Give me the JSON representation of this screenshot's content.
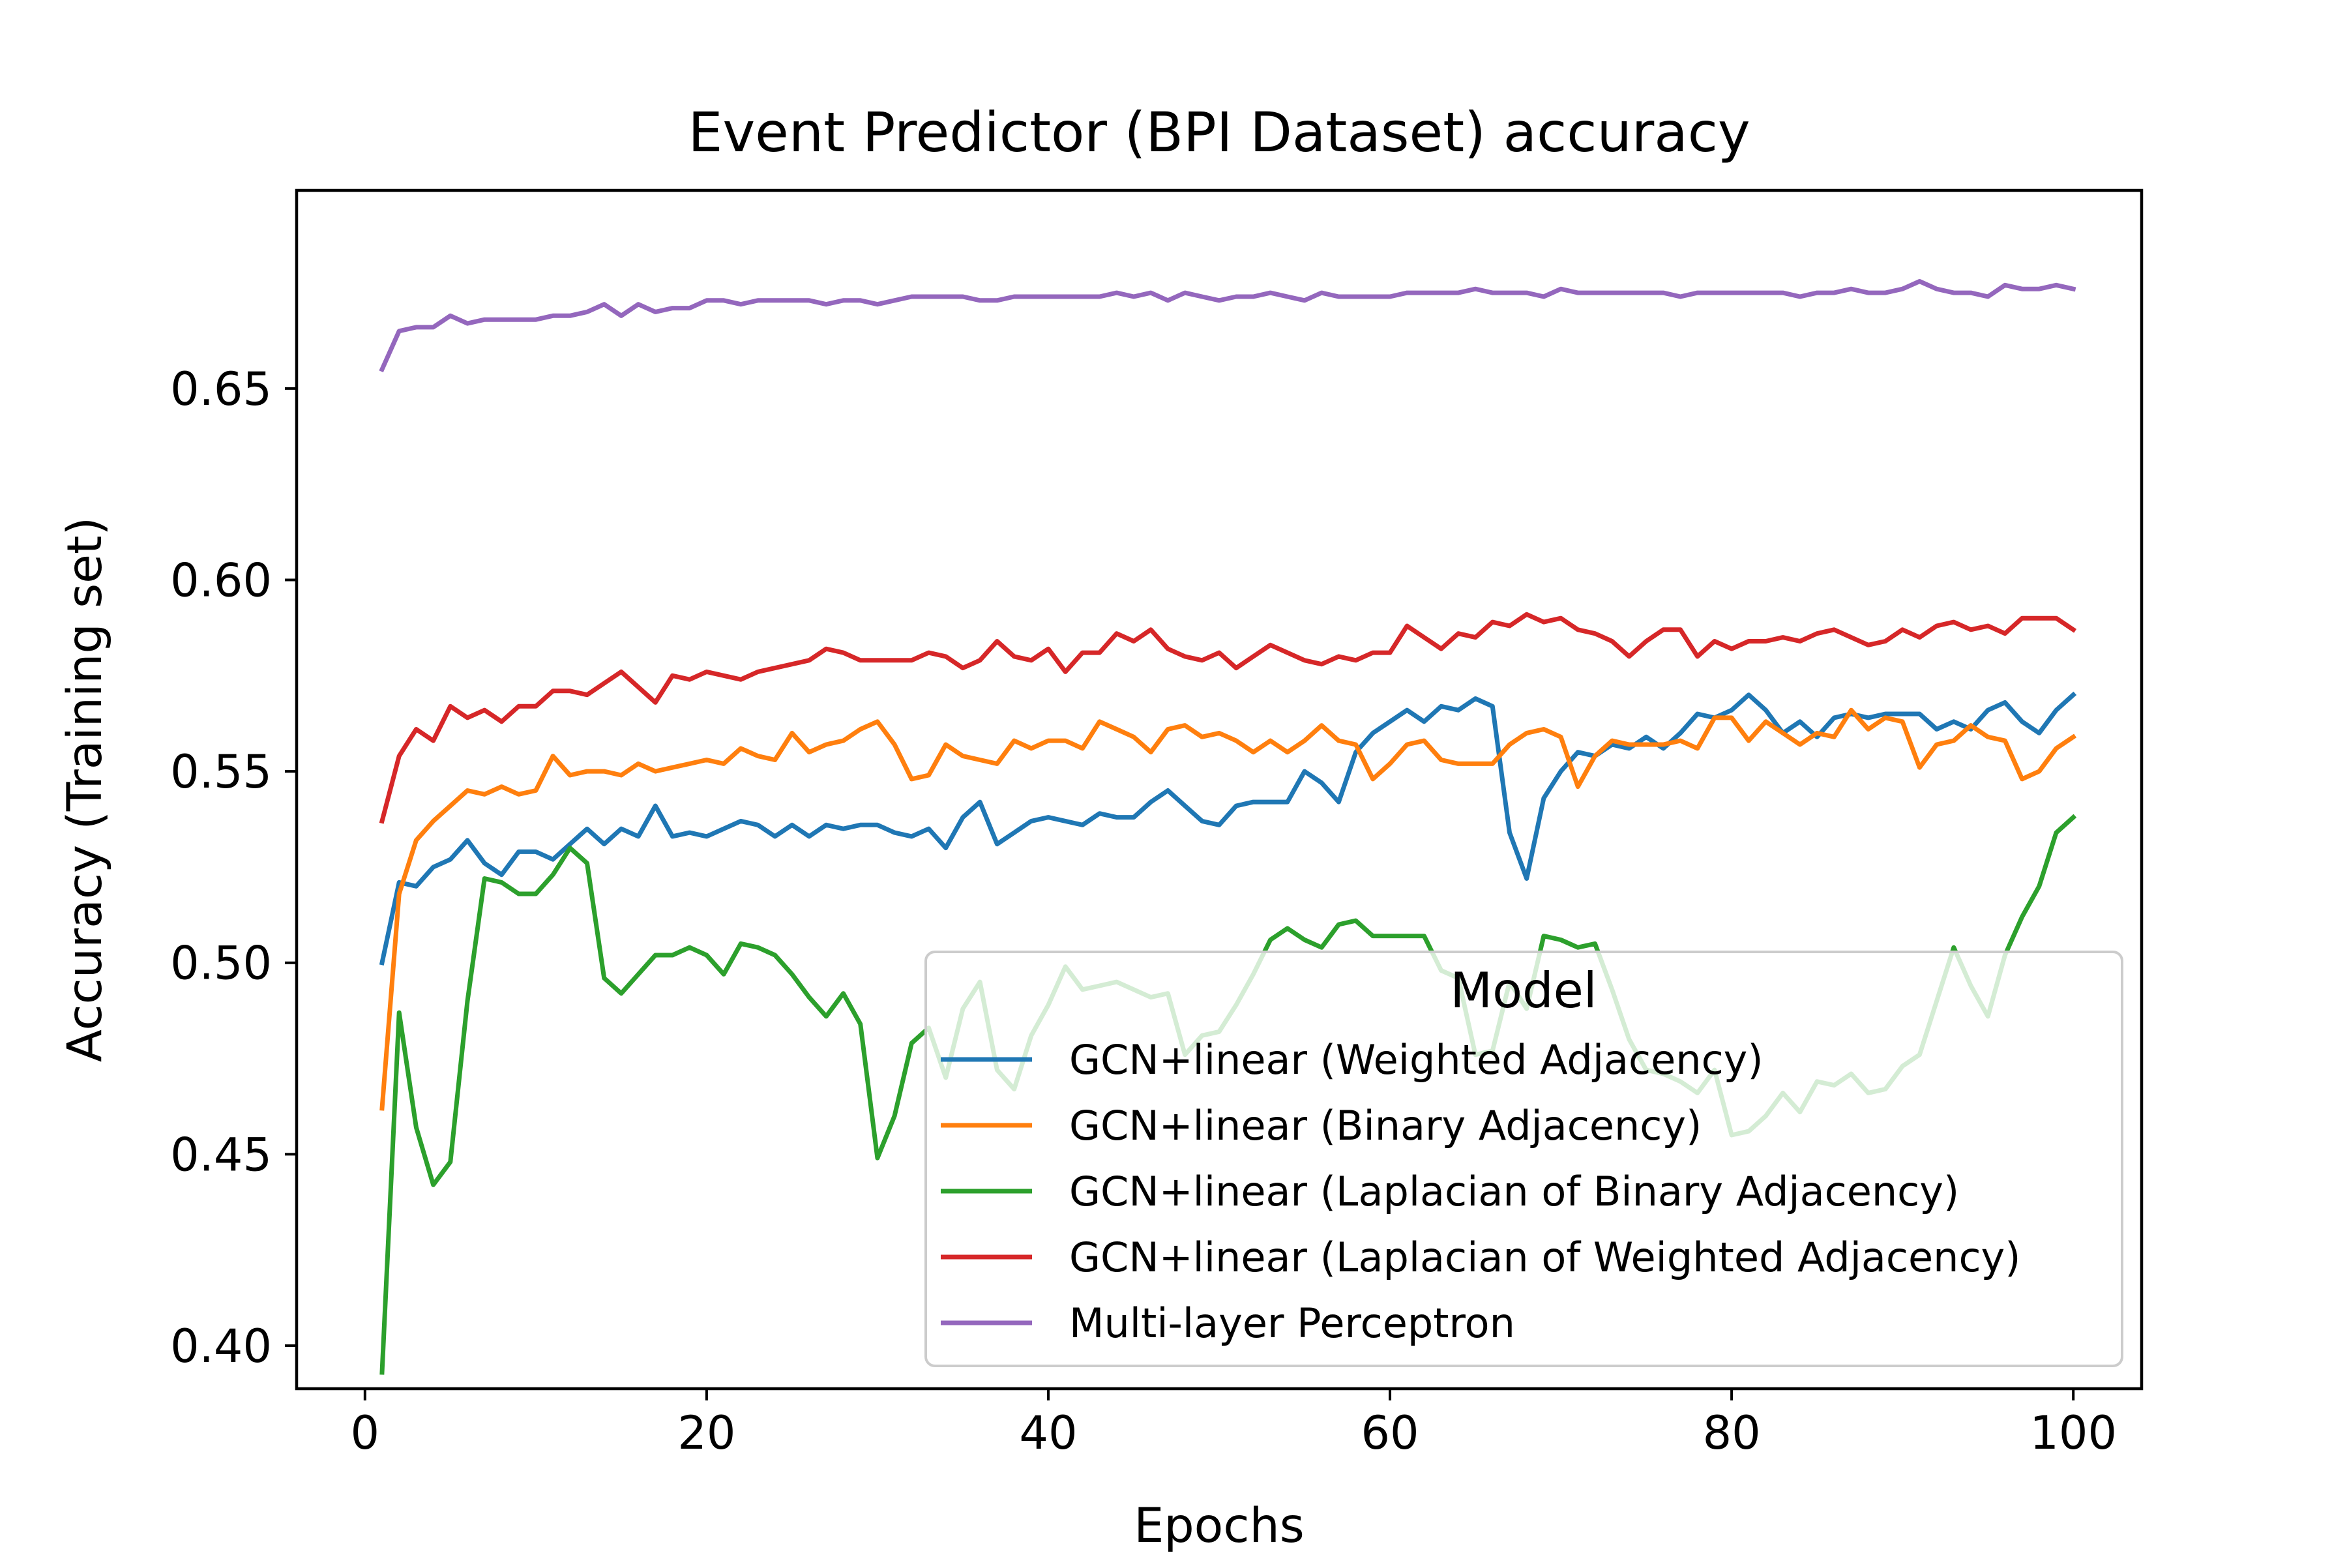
{
  "chart_data": {
    "type": "line",
    "title": "Event Predictor (BPI Dataset) accuracy",
    "xlabel": "Epochs",
    "ylabel": "Accuracy (Training set)",
    "xlim": [
      -4,
      104
    ],
    "ylim": [
      0.38875,
      0.70175
    ],
    "xticks": [
      0,
      20,
      40,
      60,
      80,
      100
    ],
    "yticks": [
      0.4,
      0.45,
      0.5,
      0.55,
      0.6,
      0.65
    ],
    "xtick_labels": [
      "0",
      "20",
      "40",
      "60",
      "80",
      "100"
    ],
    "ytick_labels": [
      "0.40",
      "0.45",
      "0.50",
      "0.55",
      "0.60",
      "0.65"
    ],
    "grid": false,
    "legend": {
      "title": "Model",
      "placement": "lower right"
    },
    "x_start": 1,
    "series": [
      {
        "name": "GCN+linear (Weighted Adjacency)",
        "color": "#1f77b4",
        "values": [
          0.5,
          0.521,
          0.52,
          0.525,
          0.527,
          0.532,
          0.526,
          0.523,
          0.529,
          0.529,
          0.527,
          0.531,
          0.535,
          0.531,
          0.535,
          0.533,
          0.541,
          0.533,
          0.534,
          0.533,
          0.535,
          0.537,
          0.536,
          0.533,
          0.536,
          0.533,
          0.536,
          0.535,
          0.536,
          0.536,
          0.534,
          0.533,
          0.535,
          0.53,
          0.538,
          0.542,
          0.531,
          0.534,
          0.537,
          0.538,
          0.537,
          0.536,
          0.539,
          0.538,
          0.538,
          0.542,
          0.545,
          0.541,
          0.537,
          0.536,
          0.541,
          0.542,
          0.542,
          0.542,
          0.55,
          0.547,
          0.542,
          0.555,
          0.56,
          0.563,
          0.566,
          0.563,
          0.567,
          0.566,
          0.569,
          0.567,
          0.534,
          0.522,
          0.543,
          0.55,
          0.555,
          0.554,
          0.557,
          0.556,
          0.559,
          0.556,
          0.56,
          0.565,
          0.564,
          0.566,
          0.57,
          0.566,
          0.56,
          0.563,
          0.559,
          0.564,
          0.565,
          0.564,
          0.565,
          0.565,
          0.565,
          0.561,
          0.563,
          0.561,
          0.566,
          0.568,
          0.563,
          0.56,
          0.566,
          0.57
        ]
      },
      {
        "name": "GCN+linear (Binary Adjacency)",
        "color": "#ff7f0e",
        "values": [
          0.462,
          0.518,
          0.532,
          0.537,
          0.541,
          0.545,
          0.544,
          0.546,
          0.544,
          0.545,
          0.554,
          0.549,
          0.55,
          0.55,
          0.549,
          0.552,
          0.55,
          0.551,
          0.552,
          0.553,
          0.552,
          0.556,
          0.554,
          0.553,
          0.56,
          0.555,
          0.557,
          0.558,
          0.561,
          0.563,
          0.557,
          0.548,
          0.549,
          0.557,
          0.554,
          0.553,
          0.552,
          0.558,
          0.556,
          0.558,
          0.558,
          0.556,
          0.563,
          0.561,
          0.559,
          0.555,
          0.561,
          0.562,
          0.559,
          0.56,
          0.558,
          0.555,
          0.558,
          0.555,
          0.558,
          0.562,
          0.558,
          0.557,
          0.548,
          0.552,
          0.557,
          0.558,
          0.553,
          0.552,
          0.552,
          0.552,
          0.557,
          0.56,
          0.561,
          0.559,
          0.546,
          0.554,
          0.558,
          0.557,
          0.557,
          0.557,
          0.558,
          0.556,
          0.564,
          0.564,
          0.558,
          0.563,
          0.56,
          0.557,
          0.56,
          0.559,
          0.566,
          0.561,
          0.564,
          0.563,
          0.551,
          0.557,
          0.558,
          0.562,
          0.559,
          0.558,
          0.548,
          0.55,
          0.556,
          0.559
        ]
      },
      {
        "name": "GCN+linear (Laplacian of Binary Adjacency)",
        "color": "#2ca02c",
        "values": [
          0.393,
          0.487,
          0.457,
          0.442,
          0.448,
          0.49,
          0.522,
          0.521,
          0.518,
          0.518,
          0.523,
          0.53,
          0.526,
          0.496,
          0.492,
          0.497,
          0.502,
          0.502,
          0.504,
          0.502,
          0.497,
          0.505,
          0.504,
          0.502,
          0.497,
          0.491,
          0.486,
          0.492,
          0.484,
          0.449,
          0.46,
          0.479,
          0.483,
          0.47,
          0.488,
          0.495,
          0.472,
          0.467,
          0.481,
          0.489,
          0.499,
          0.493,
          0.494,
          0.495,
          0.493,
          0.491,
          0.492,
          0.476,
          0.481,
          0.482,
          0.489,
          0.497,
          0.506,
          0.509,
          0.506,
          0.504,
          0.51,
          0.511,
          0.507,
          0.507,
          0.507,
          0.507,
          0.498,
          0.496,
          0.476,
          0.477,
          0.495,
          0.488,
          0.507,
          0.506,
          0.504,
          0.505,
          0.493,
          0.48,
          0.472,
          0.471,
          0.469,
          0.466,
          0.472,
          0.455,
          0.456,
          0.46,
          0.466,
          0.461,
          0.469,
          0.468,
          0.471,
          0.466,
          0.467,
          0.473,
          0.476,
          0.49,
          0.504,
          0.494,
          0.486,
          0.502,
          0.512,
          0.52,
          0.534,
          0.538
        ]
      },
      {
        "name": "GCN+linear (Laplacian of Weighted Adjacency)",
        "color": "#d62728",
        "values": [
          0.537,
          0.554,
          0.561,
          0.558,
          0.567,
          0.564,
          0.566,
          0.563,
          0.567,
          0.567,
          0.571,
          0.571,
          0.57,
          0.573,
          0.576,
          0.572,
          0.568,
          0.575,
          0.574,
          0.576,
          0.575,
          0.574,
          0.576,
          0.577,
          0.578,
          0.579,
          0.582,
          0.581,
          0.579,
          0.579,
          0.579,
          0.579,
          0.581,
          0.58,
          0.577,
          0.579,
          0.584,
          0.58,
          0.579,
          0.582,
          0.576,
          0.581,
          0.581,
          0.586,
          0.584,
          0.587,
          0.582,
          0.58,
          0.579,
          0.581,
          0.577,
          0.58,
          0.583,
          0.581,
          0.579,
          0.578,
          0.58,
          0.579,
          0.581,
          0.581,
          0.588,
          0.585,
          0.582,
          0.586,
          0.585,
          0.589,
          0.588,
          0.591,
          0.589,
          0.59,
          0.587,
          0.586,
          0.584,
          0.58,
          0.584,
          0.587,
          0.587,
          0.58,
          0.584,
          0.582,
          0.584,
          0.584,
          0.585,
          0.584,
          0.586,
          0.587,
          0.585,
          0.583,
          0.584,
          0.587,
          0.585,
          0.588,
          0.589,
          0.587,
          0.588,
          0.586,
          0.59,
          0.59,
          0.59,
          0.587
        ]
      },
      {
        "name": "Multi-layer Perceptron",
        "color": "#9467bd",
        "values": [
          0.655,
          0.665,
          0.666,
          0.666,
          0.669,
          0.667,
          0.668,
          0.668,
          0.668,
          0.668,
          0.669,
          0.669,
          0.67,
          0.672,
          0.669,
          0.672,
          0.67,
          0.671,
          0.671,
          0.673,
          0.673,
          0.672,
          0.673,
          0.673,
          0.673,
          0.673,
          0.672,
          0.673,
          0.673,
          0.672,
          0.673,
          0.674,
          0.674,
          0.674,
          0.674,
          0.673,
          0.673,
          0.674,
          0.674,
          0.674,
          0.674,
          0.674,
          0.674,
          0.675,
          0.674,
          0.675,
          0.673,
          0.675,
          0.674,
          0.673,
          0.674,
          0.674,
          0.675,
          0.674,
          0.673,
          0.675,
          0.674,
          0.674,
          0.674,
          0.674,
          0.675,
          0.675,
          0.675,
          0.675,
          0.676,
          0.675,
          0.675,
          0.675,
          0.674,
          0.676,
          0.675,
          0.675,
          0.675,
          0.675,
          0.675,
          0.675,
          0.674,
          0.675,
          0.675,
          0.675,
          0.675,
          0.675,
          0.675,
          0.674,
          0.675,
          0.675,
          0.676,
          0.675,
          0.675,
          0.676,
          0.678,
          0.676,
          0.675,
          0.675,
          0.674,
          0.677,
          0.676,
          0.676,
          0.677,
          0.676
        ]
      }
    ]
  }
}
